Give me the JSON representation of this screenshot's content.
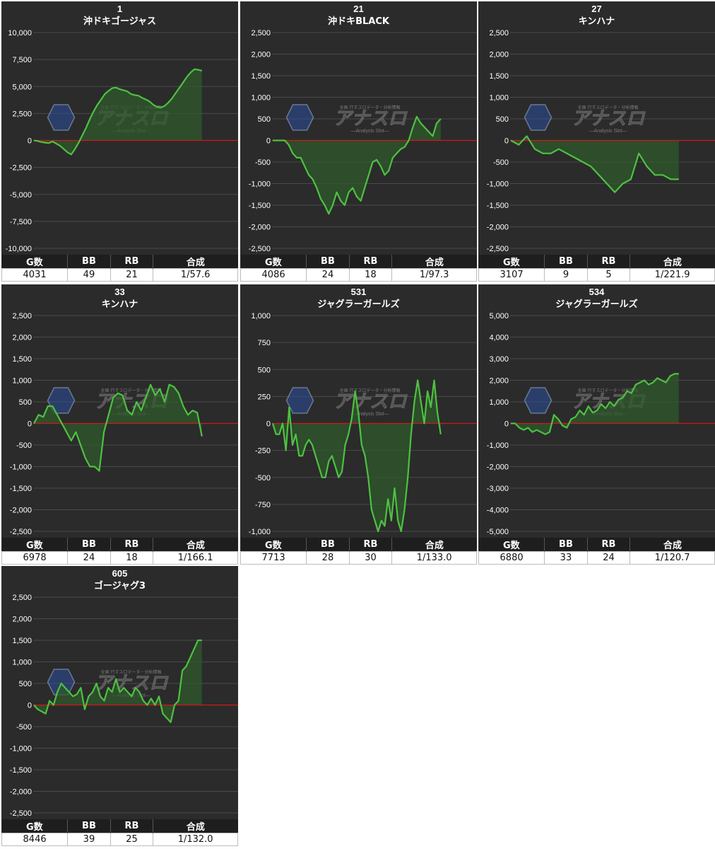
{
  "colors": {
    "panel_bg": "#2b2b2b",
    "line": "#4ec142",
    "fill": "#2f5a2c",
    "zero_line": "#d01818",
    "grid": "#4a4a4a",
    "text": "#ffffff"
  },
  "watermark": {
    "main": "アナスロ",
    "sub": "—Analysis Slot—",
    "top": "全国 行すスロデータ・分析情報"
  },
  "stat_headers": [
    "G数",
    "BB",
    "RB",
    "合成"
  ],
  "chart_data": [
    {
      "type": "area",
      "title": "1",
      "subtitle": "沖ドキゴージャス",
      "ylim": [
        -10000,
        10000
      ],
      "y_ticks": [
        "10,000",
        "7,500",
        "5,000",
        "2,500",
        "0",
        "-2,500",
        "-5,000",
        "-7,500",
        "-10,000"
      ],
      "values": [
        0,
        -50,
        -150,
        -200,
        -250,
        -100,
        -300,
        -500,
        -800,
        -1100,
        -1300,
        -800,
        -200,
        500,
        1200,
        2000,
        2700,
        3300,
        3800,
        4300,
        4600,
        4850,
        4900,
        4750,
        4650,
        4550,
        4300,
        4200,
        4150,
        3950,
        3800,
        3600,
        3300,
        3100,
        3050,
        3200,
        3500,
        3900,
        4400,
        4900,
        5400,
        5900,
        6300,
        6600,
        6550,
        6450
      ],
      "stats": {
        "games": "4031",
        "bb": "49",
        "rb": "21",
        "combined": "1/57.6"
      }
    },
    {
      "type": "area",
      "title": "21",
      "subtitle": "沖ドキBLACK",
      "ylim": [
        -2500,
        2500
      ],
      "y_ticks": [
        "2,500",
        "2,000",
        "1,500",
        "1,000",
        "500",
        "0",
        "-500",
        "-1,000",
        "-1,500",
        "-2,000",
        "-2,500"
      ],
      "values": [
        0,
        0,
        0,
        0,
        -100,
        -300,
        -400,
        -400,
        -600,
        -800,
        -900,
        -1100,
        -1350,
        -1500,
        -1700,
        -1500,
        -1200,
        -1400,
        -1500,
        -1200,
        -1100,
        -1300,
        -1400,
        -1100,
        -800,
        -500,
        -450,
        -600,
        -800,
        -700,
        -400,
        -300,
        -200,
        -150,
        0,
        300,
        550,
        400,
        300,
        200,
        100,
        400,
        500
      ],
      "stats": {
        "games": "4086",
        "bb": "24",
        "rb": "18",
        "combined": "1/97.3"
      }
    },
    {
      "type": "area",
      "title": "27",
      "subtitle": "キンハナ",
      "ylim": [
        -2500,
        2500
      ],
      "y_ticks": [
        "2,500",
        "2,000",
        "1,500",
        "1,000",
        "500",
        "0",
        "-500",
        "-1,000",
        "-1,500",
        "-2,000",
        "-2,500"
      ],
      "values": [
        0,
        -100,
        100,
        -200,
        -300,
        -300,
        -200,
        -300,
        -400,
        -500,
        -600,
        -800,
        -1000,
        -1200,
        -1000,
        -900,
        -300,
        -600,
        -800,
        -800,
        -900,
        -900
      ],
      "stats": {
        "games": "3107",
        "bb": "9",
        "rb": "5",
        "combined": "1/221.9"
      }
    },
    {
      "type": "area",
      "title": "33",
      "subtitle": "キンハナ",
      "ylim": [
        -2500,
        2500
      ],
      "y_ticks": [
        "2,500",
        "2,000",
        "1,500",
        "1,000",
        "500",
        "0",
        "-500",
        "-1,000",
        "-1,500",
        "-2,000",
        "-2,500"
      ],
      "values": [
        0,
        200,
        150,
        400,
        400,
        200,
        0,
        -200,
        -400,
        -200,
        -500,
        -800,
        -1000,
        -1000,
        -1100,
        -200,
        200,
        600,
        700,
        650,
        300,
        200,
        500,
        300,
        600,
        900,
        650,
        800,
        500,
        900,
        850,
        700,
        400,
        200,
        300,
        250,
        -300
      ],
      "stats": {
        "games": "6978",
        "bb": "24",
        "rb": "18",
        "combined": "1/166.1"
      }
    },
    {
      "type": "area",
      "title": "531",
      "subtitle": "ジャグラーガールズ",
      "ylim": [
        -1000,
        1000
      ],
      "y_ticks": [
        "1,000",
        "750",
        "500",
        "250",
        "0",
        "-250",
        "-500",
        "-750",
        "-1,000"
      ],
      "values": [
        0,
        -100,
        -100,
        0,
        -250,
        150,
        -200,
        -100,
        -300,
        -300,
        -200,
        -150,
        -200,
        -300,
        -400,
        -500,
        -500,
        -350,
        -300,
        -400,
        -500,
        -450,
        -200,
        -100,
        50,
        300,
        100,
        -200,
        -300,
        -500,
        -800,
        -900,
        -1000,
        -900,
        -950,
        -700,
        -900,
        -600,
        -900,
        -1000,
        -800,
        -500,
        -100,
        200,
        400,
        200,
        0,
        300,
        150,
        400,
        100,
        -100
      ],
      "stats": {
        "games": "7713",
        "bb": "28",
        "rb": "30",
        "combined": "1/133.0"
      }
    },
    {
      "type": "area",
      "title": "534",
      "subtitle": "ジャグラーガールズ",
      "ylim": [
        -5000,
        5000
      ],
      "y_ticks": [
        "5,000",
        "4,000",
        "3,000",
        "2,000",
        "1,000",
        "0",
        "-1,000",
        "-2,000",
        "-3,000",
        "-4,000",
        "-5,000"
      ],
      "values": [
        0,
        0,
        -200,
        -300,
        -200,
        -400,
        -300,
        -400,
        -500,
        -400,
        400,
        200,
        -100,
        -200,
        200,
        300,
        600,
        400,
        800,
        500,
        600,
        900,
        700,
        1000,
        800,
        1100,
        1200,
        1500,
        1400,
        1800,
        1900,
        2000,
        1800,
        1900,
        2100,
        2000,
        1900,
        2200,
        2300,
        2300
      ],
      "stats": {
        "games": "6880",
        "bb": "33",
        "rb": "24",
        "combined": "1/120.7"
      }
    },
    {
      "type": "area",
      "title": "605",
      "subtitle": "ゴージャグ3",
      "ylim": [
        -2500,
        2500
      ],
      "y_ticks": [
        "2,500",
        "2,000",
        "1,500",
        "1,000",
        "500",
        "0",
        "-500",
        "-1,000",
        "-1,500",
        "-2,000",
        "-2,500"
      ],
      "values": [
        0,
        -100,
        -150,
        -200,
        100,
        0,
        300,
        500,
        400,
        300,
        200,
        250,
        400,
        -100,
        200,
        300,
        500,
        200,
        100,
        400,
        300,
        600,
        300,
        400,
        300,
        200,
        400,
        300,
        100,
        0,
        150,
        0,
        200,
        -200,
        -300,
        -400,
        0,
        100,
        800,
        900,
        1100,
        1300,
        1500,
        1500
      ],
      "stats": {
        "games": "8446",
        "bb": "39",
        "rb": "25",
        "combined": "1/132.0"
      }
    }
  ]
}
